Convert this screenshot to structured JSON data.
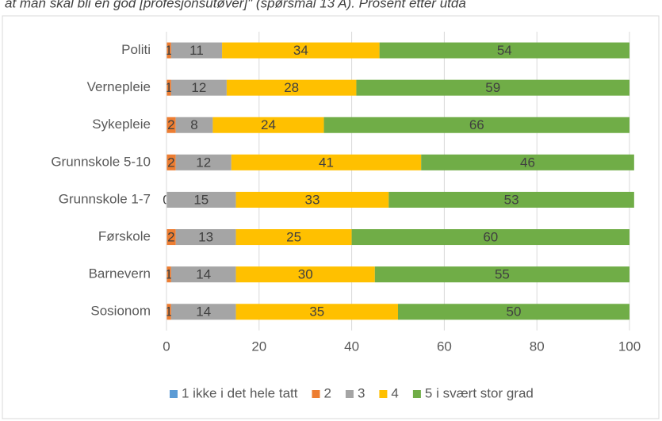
{
  "chart_data": {
    "type": "stacked_bar_horizontal",
    "title": "at man skal bli en god [profesjonsutøver]\" (spørsmål 13 A). Prosent etter utda",
    "categories": [
      "Politi",
      "Vernepleie",
      "Sykepleie",
      "Grunnskole 5-10",
      "Grunnskole 1-7",
      "Førskole",
      "Barnevern",
      "Sosionom"
    ],
    "series": [
      {
        "name": "1 ikke i det hele tatt",
        "color": "#5b9bd5",
        "values": [
          0,
          0,
          0,
          0,
          0,
          0,
          0,
          0
        ],
        "data_labels": false
      },
      {
        "name": "2",
        "color": "#ed7d31",
        "values": [
          1,
          1,
          2,
          2,
          0,
          2,
          1,
          1
        ],
        "data_labels": true
      },
      {
        "name": "3",
        "color": "#a5a5a5",
        "values": [
          11,
          12,
          8,
          12,
          15,
          13,
          14,
          14
        ],
        "data_labels": true
      },
      {
        "name": "4",
        "color": "#ffc000",
        "values": [
          34,
          28,
          24,
          41,
          33,
          25,
          30,
          35
        ],
        "data_labels": true
      },
      {
        "name": "5 i svært stor grad",
        "color": "#70ad47",
        "values": [
          54,
          59,
          66,
          46,
          53,
          60,
          55,
          50
        ],
        "data_labels": true
      }
    ],
    "xlim": [
      0,
      100
    ],
    "xticks": [
      0,
      20,
      40,
      60,
      80,
      100
    ],
    "grid": true,
    "legend": "bottom"
  }
}
